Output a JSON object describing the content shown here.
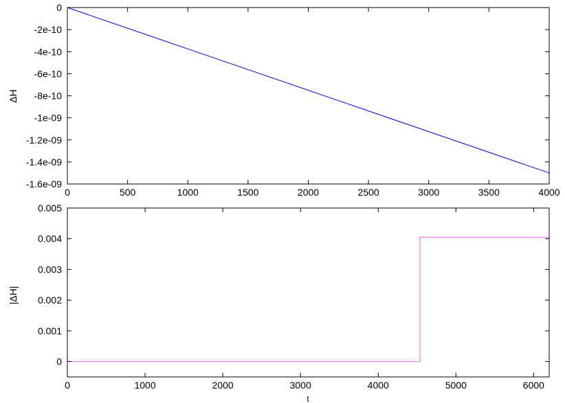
{
  "chart_data": [
    {
      "type": "line",
      "title": "",
      "xlabel": "",
      "ylabel": "ΔH",
      "xlim": [
        0,
        4000
      ],
      "ylim": [
        -1.6e-09,
        0
      ],
      "xticks": [
        0,
        500,
        1000,
        1500,
        2000,
        2500,
        3000,
        3500,
        4000
      ],
      "xtick_labels": [
        "0",
        "500",
        "1000",
        "1500",
        "2000",
        "2500",
        "3000",
        "3500",
        "4000"
      ],
      "yticks": [
        0,
        -2e-10,
        -4e-10,
        -6e-10,
        -8e-10,
        -1e-09,
        -1.2e-09,
        -1.4e-09,
        -1.6e-09
      ],
      "ytick_labels": [
        "0",
        "-2e-10",
        "-4e-10",
        "-6e-10",
        "-8e-10",
        "-1e-09",
        "-1.2e-09",
        "-1.4e-09",
        "-1.6e-09"
      ],
      "grid": false,
      "series": [
        {
          "color": "#0000ee",
          "x": [
            0,
            4000
          ],
          "y": [
            0,
            -1.5e-09
          ]
        }
      ]
    },
    {
      "type": "line",
      "title": "",
      "xlabel": "t",
      "ylabel": "|ΔH|",
      "xlim": [
        0,
        6200
      ],
      "ylim": [
        -0.0005,
        0.005
      ],
      "xticks": [
        0,
        1000,
        2000,
        3000,
        4000,
        5000,
        6000
      ],
      "xtick_labels": [
        "0",
        "1000",
        "2000",
        "3000",
        "4000",
        "5000",
        "6000"
      ],
      "yticks": [
        0,
        0.001,
        0.002,
        0.003,
        0.004,
        0.005
      ],
      "ytick_labels": [
        "0",
        "0.001",
        "0.002",
        "0.003",
        "0.004",
        "0.005"
      ],
      "grid": false,
      "series": [
        {
          "color": "#ff66ff",
          "x": [
            0,
            4540,
            4540,
            6200
          ],
          "y": [
            0,
            0,
            0.00405,
            0.00405
          ]
        }
      ]
    }
  ]
}
